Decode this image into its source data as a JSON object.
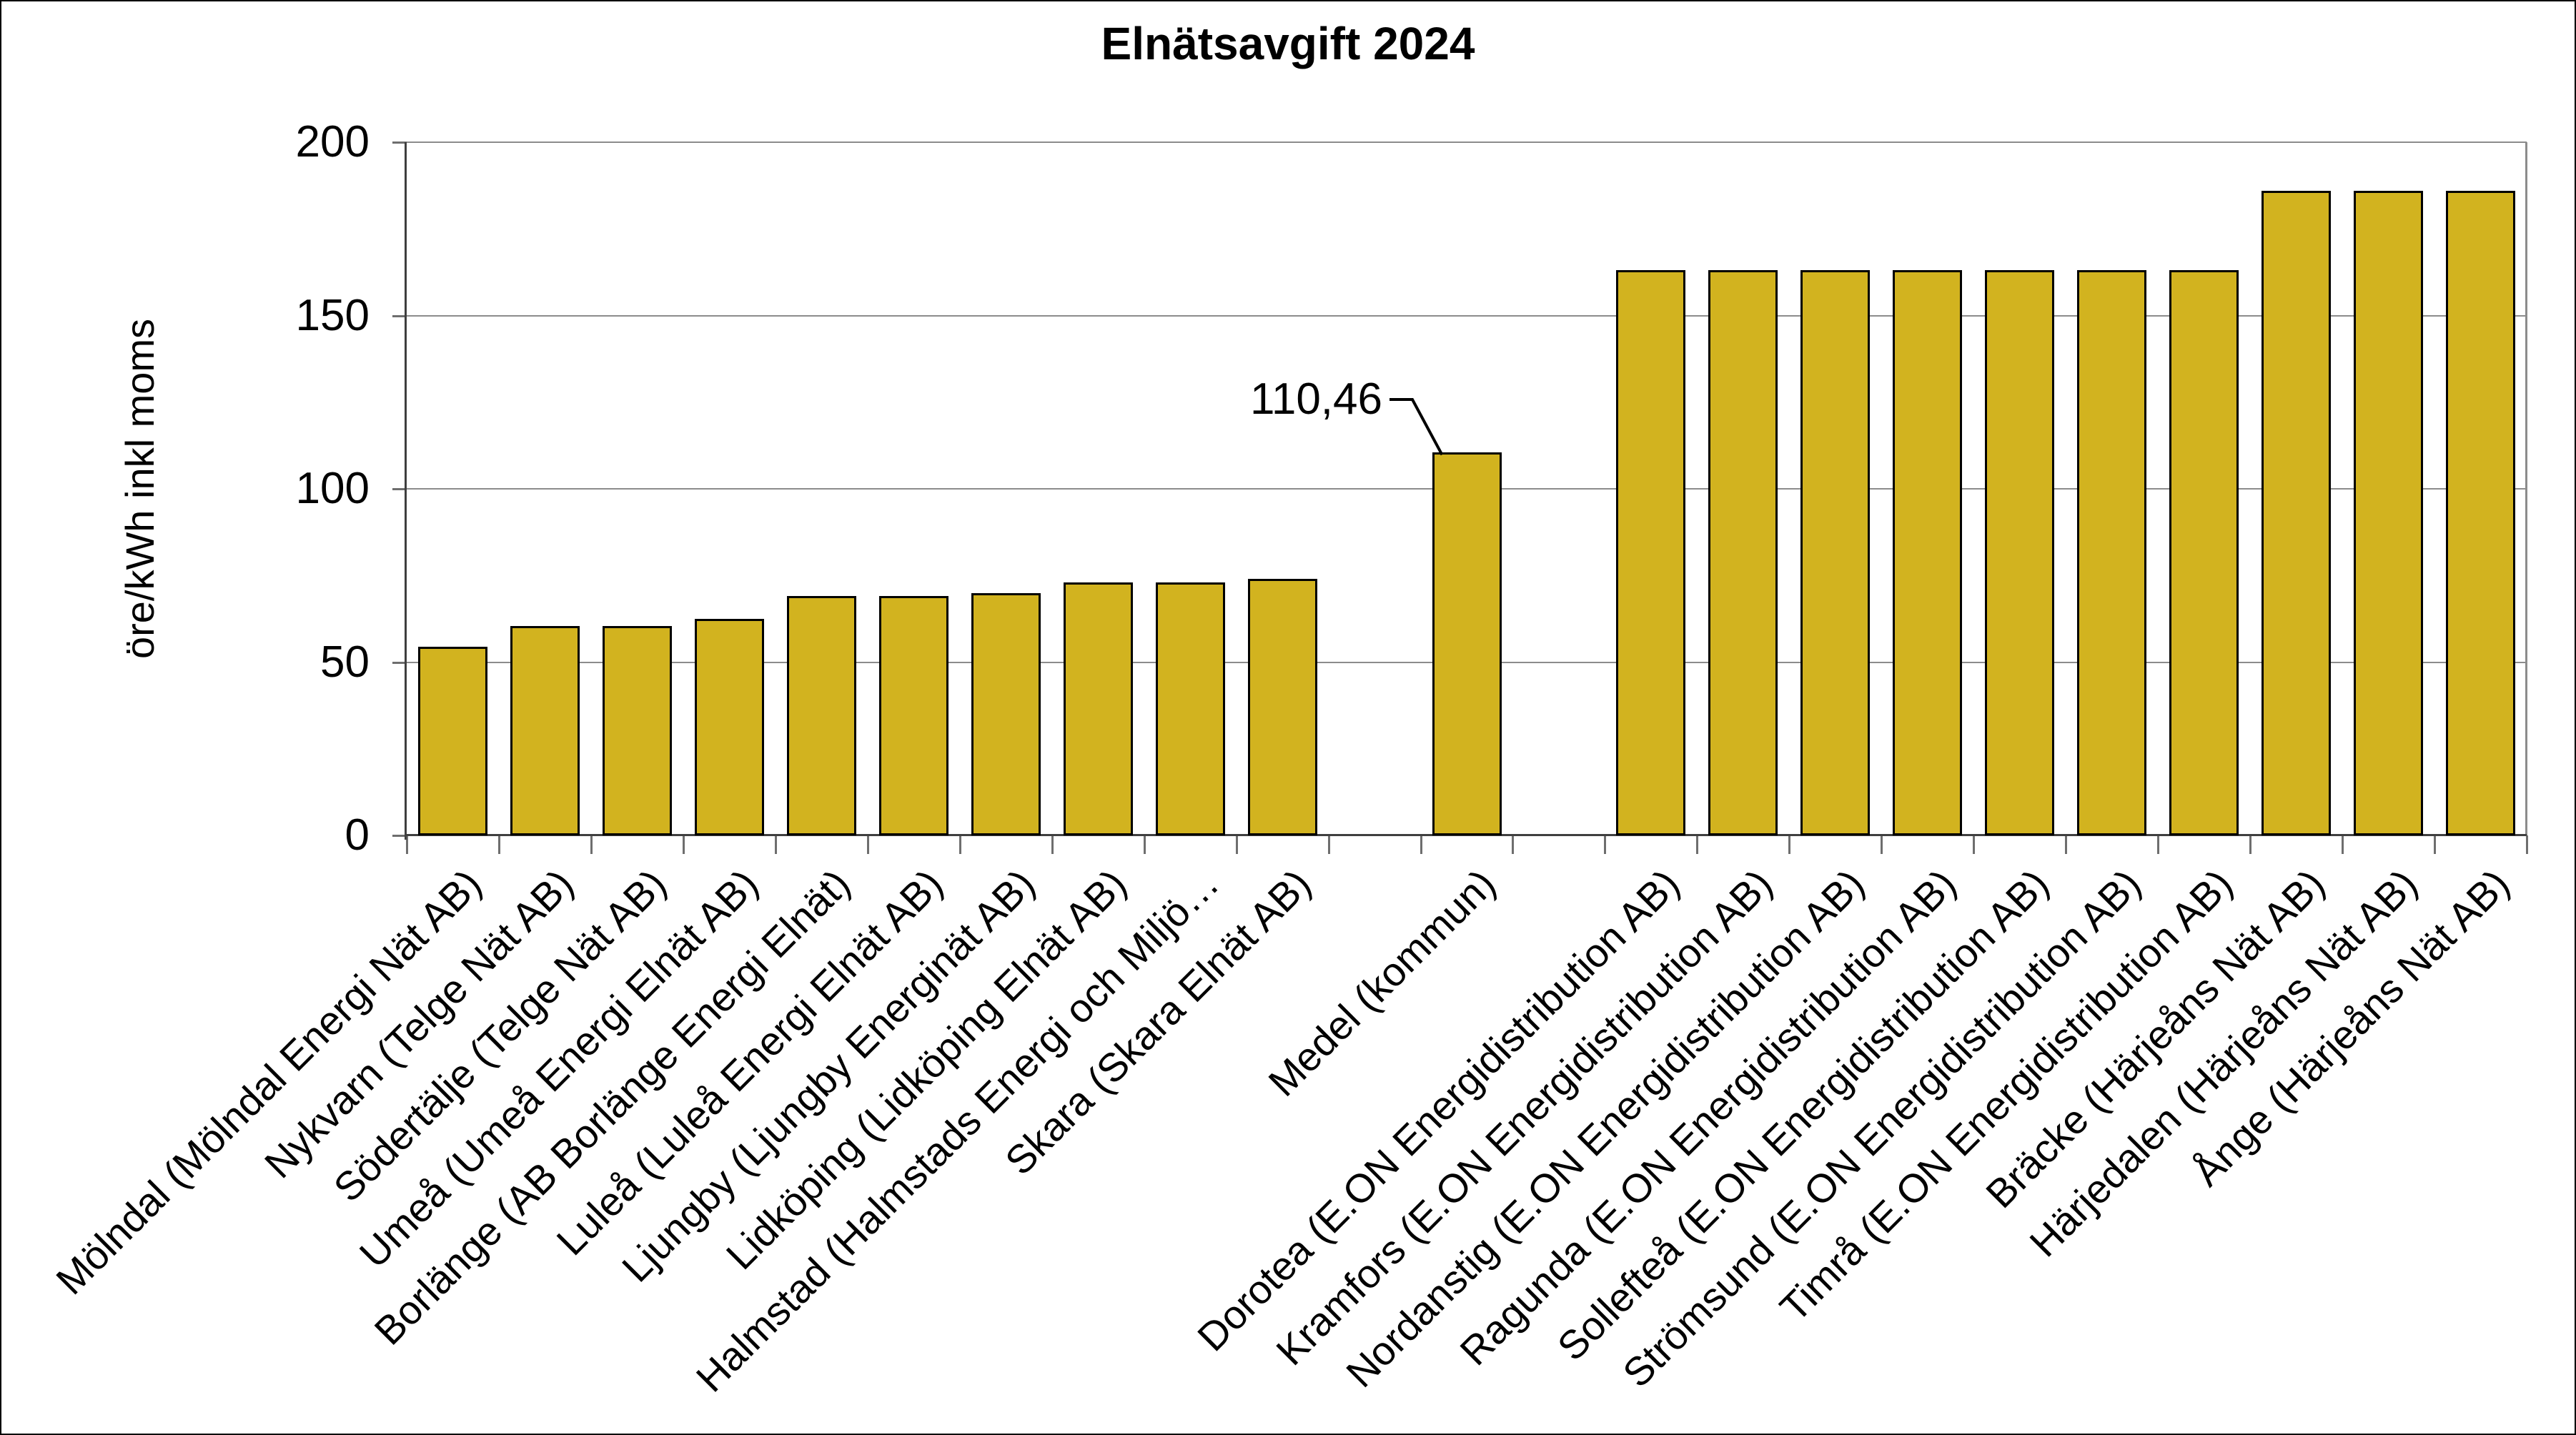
{
  "chart_data": {
    "type": "bar",
    "title": "Elnätsavgift 2024",
    "ylabel": "öre/kWh inkl moms",
    "ylim": [
      0,
      200
    ],
    "yticks": [
      0,
      50,
      100,
      150,
      200
    ],
    "grid": "horizontal-gray",
    "legend": "none",
    "bar_color": "#D2B31F",
    "bar_border_color": "#000000",
    "categories": [
      "Mölndal (Mölndal Energi Nät AB)",
      "Nykvarn (Telge Nät AB)",
      "Södertälje (Telge Nät AB)",
      "Umeå (Umeå Energi Elnät AB)",
      "Borlänge (AB Borlänge Energi Elnät)",
      "Luleå (Luleå Energi Elnät AB)",
      "Ljungby (Ljungby Energinät AB)",
      "Lidköping (Lidköping Elnät AB)",
      "Halmstad (Halmstads Energi och Miljö…",
      "Skara (Skara Elnät AB)",
      "",
      "Medel (kommun)",
      "",
      "Dorotea (E.ON Energidistribution AB)",
      "Kramfors (E.ON Energidistribution AB)",
      "Nordanstig (E.ON Energidistribution AB)",
      "Ragunda (E.ON Energidistribution AB)",
      "Sollefteå (E.ON Energidistribution AB)",
      "Strömsund (E.ON Energidistribution AB)",
      "Timrå (E.ON Energidistribution AB)",
      "Bräcke (Härjeåns Nät AB)",
      "Härjedalen (Härjeåns Nät AB)",
      "Ånge (Härjeåns Nät AB)"
    ],
    "values": [
      54.5,
      60.5,
      60.5,
      62.5,
      69,
      69,
      70,
      73,
      73,
      74,
      null,
      110.46,
      null,
      163,
      163,
      163,
      163,
      163,
      163,
      163,
      186,
      186,
      186
    ],
    "annotation": {
      "text": "110,46",
      "target_category": "Medel (kommun)",
      "target_index": 11
    }
  }
}
